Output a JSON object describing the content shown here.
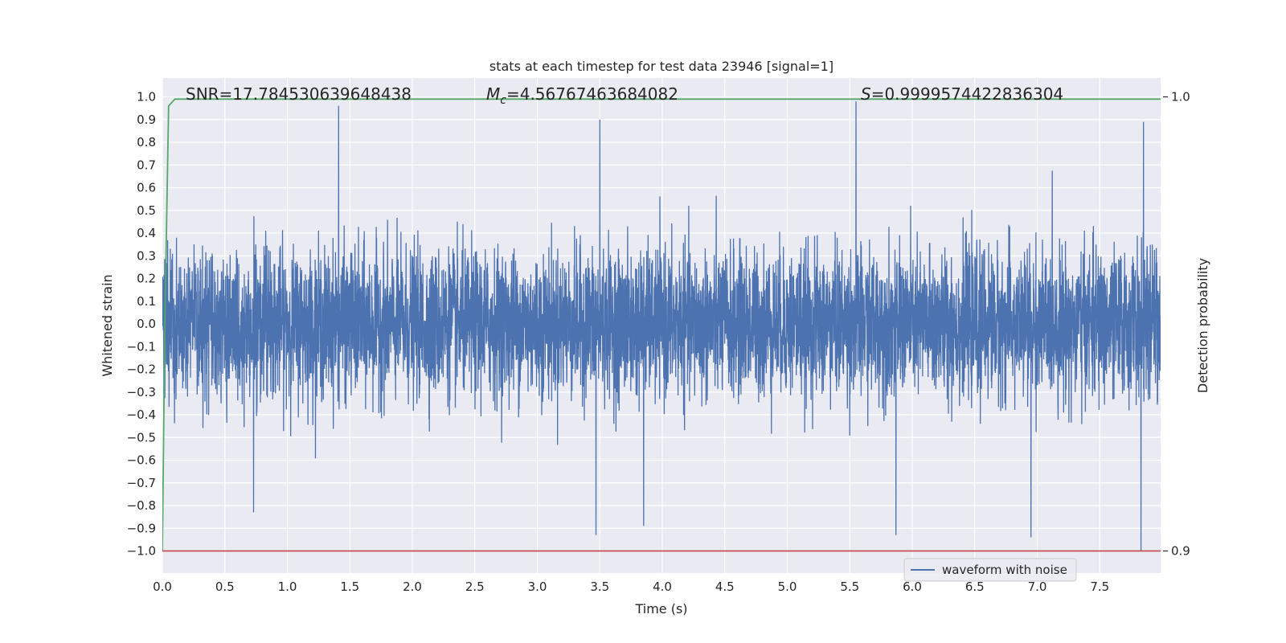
{
  "chart_data": {
    "type": "line",
    "title": "stats at each timestep for test data 23946 [signal=1]",
    "xlabel": "Time (s)",
    "ylabel": "Whitened strain",
    "ylabel_right": "Detection probability",
    "xlim": [
      0.0,
      8.0
    ],
    "ylim": [
      -1.05,
      1.1
    ],
    "ylim_right": [
      0.9,
      1.0
    ],
    "grid": true,
    "x_ticks": [
      "0.0",
      "0.5",
      "1.0",
      "1.5",
      "2.0",
      "2.5",
      "3.0",
      "3.5",
      "4.0",
      "4.5",
      "5.0",
      "5.5",
      "6.0",
      "6.5",
      "7.0",
      "7.5"
    ],
    "y_ticks": [
      "1.0",
      "0.9",
      "0.8",
      "0.7",
      "0.6",
      "0.5",
      "0.4",
      "0.3",
      "0.2",
      "0.1",
      "0.0",
      "−0.1",
      "−0.2",
      "−0.3",
      "−0.4",
      "−0.5",
      "−0.6",
      "−0.7",
      "−0.8",
      "−0.9",
      "−1.0"
    ],
    "y_right_ticks": [
      "1.0",
      "0.9"
    ],
    "annotations": {
      "snr": "SNR=17.784530639648438",
      "mc_symbol": "M",
      "mc_sub": "c",
      "mc_value": "=4.56767463684082",
      "s_symbol": "S",
      "s_value": "=0.9999574422836304"
    },
    "legend": {
      "placement": "lower-right",
      "entries": [
        "waveform with noise"
      ]
    },
    "series": [
      {
        "name": "waveform with noise",
        "color": "#4c72b0",
        "axis": "left",
        "description_values": {
          "x_range": [
            0.0,
            7.99
          ],
          "typical_amplitude": 0.35,
          "peaks": [
            {
              "x": 1.41,
              "y": 0.96
            },
            {
              "x": 3.5,
              "y": 0.9
            },
            {
              "x": 5.55,
              "y": 0.98
            },
            {
              "x": 7.85,
              "y": 0.89
            },
            {
              "x": 3.47,
              "y": -0.93
            },
            {
              "x": 3.85,
              "y": -0.89
            },
            {
              "x": 5.87,
              "y": -0.93
            },
            {
              "x": 6.95,
              "y": -0.94
            },
            {
              "x": 7.83,
              "y": -1.0
            },
            {
              "x": 0.73,
              "y": -0.83
            }
          ]
        }
      },
      {
        "color": "#55a868",
        "axis": "right",
        "points": [
          [
            0.0,
            0.9
          ],
          [
            0.02,
            0.95
          ],
          [
            0.05,
            0.998
          ],
          [
            0.1,
            0.9995
          ],
          [
            7.99,
            0.9995
          ]
        ]
      },
      {
        "color": "#c44e52",
        "axis": "left",
        "points": [
          [
            0.0,
            -1.0
          ],
          [
            8.0,
            -1.0
          ]
        ]
      }
    ]
  }
}
